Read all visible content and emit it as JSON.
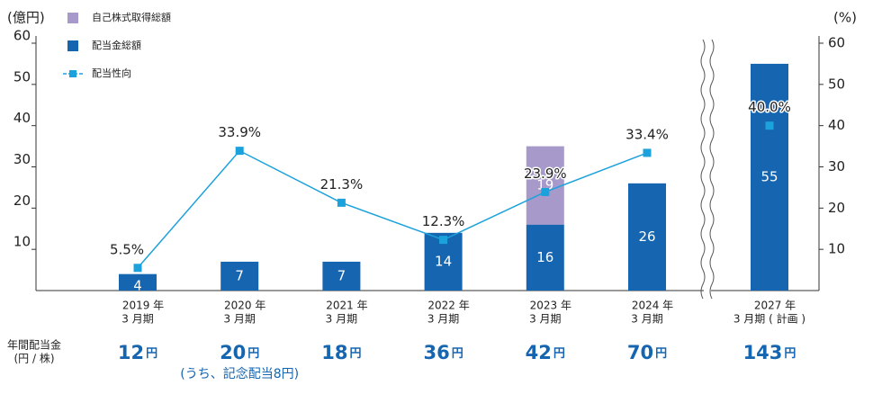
{
  "chart_data": {
    "type": "combo",
    "y_title": "(億円)",
    "y2_title": "(%)",
    "categories": [
      [
        "2019 年",
        "3 月期"
      ],
      [
        "2020 年",
        "3 月期"
      ],
      [
        "2021 年",
        "3 月期"
      ],
      [
        "2022 年",
        "3 月期"
      ],
      [
        "2023 年",
        "3 月期"
      ],
      [
        "2024 年",
        "3 月期"
      ],
      [
        "2027 年",
        "3 月期 ( 計画 )"
      ]
    ],
    "x_break_before": 6,
    "series": [
      {
        "name": "自己株式取得総額",
        "type": "bar",
        "color": "#a79acb",
        "values": [
          null,
          null,
          null,
          null,
          19,
          null,
          null
        ]
      },
      {
        "name": "配当金総額",
        "type": "bar",
        "color": "#1565b0",
        "values": [
          4,
          7,
          7,
          14,
          16,
          26,
          55
        ]
      },
      {
        "name": "配当性向",
        "type": "line",
        "axis": "y2",
        "color": "#1ba2dc",
        "values": [
          5.5,
          33.9,
          21.3,
          12.3,
          23.9,
          33.4,
          40.0
        ],
        "value_labels": [
          "5.5%",
          "33.9%",
          "21.3%",
          "12.3%",
          "23.9%",
          "33.4%",
          "40.0%"
        ]
      }
    ],
    "ylim": [
      0,
      60
    ],
    "yticks": [
      10,
      20,
      30,
      40,
      50,
      60
    ],
    "y2lim": [
      0,
      60
    ],
    "y2ticks": [
      10,
      20,
      30,
      40,
      50,
      60
    ],
    "annual_dividend": {
      "title": [
        "年間配当金",
        "(円 / 株)"
      ],
      "values": [
        12,
        20,
        18,
        36,
        42,
        70,
        143
      ],
      "unit": "円",
      "notes": [
        null,
        "(うち、記念配当8円)",
        null,
        null,
        null,
        null,
        null
      ]
    }
  }
}
